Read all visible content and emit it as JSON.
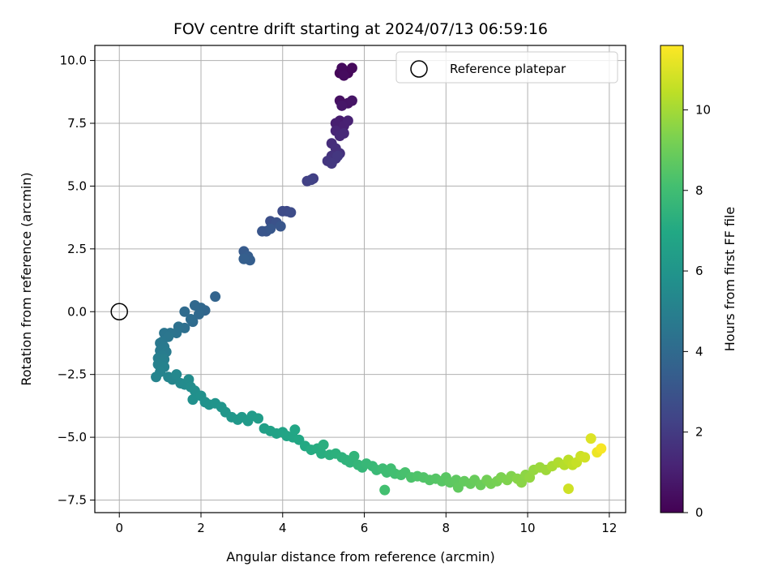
{
  "chart_data": {
    "type": "scatter",
    "title": "FOV centre drift starting at 2024/07/13 06:59:16",
    "xlabel": "Angular distance from reference (arcmin)",
    "ylabel": "Rotation from reference (arcmin)",
    "xlim": [
      -0.6,
      12.4
    ],
    "ylim": [
      -8.0,
      10.6
    ],
    "xticks": [
      0,
      2,
      4,
      6,
      8,
      10,
      12
    ],
    "xtick_labels": [
      "0",
      "2",
      "4",
      "6",
      "8",
      "10",
      "12"
    ],
    "yticks": [
      -7.5,
      -5.0,
      -2.5,
      0.0,
      2.5,
      5.0,
      7.5,
      10.0
    ],
    "ytick_labels": [
      "−7.5",
      "−5.0",
      "−2.5",
      "0.0",
      "2.5",
      "5.0",
      "7.5",
      "10.0"
    ],
    "grid": true,
    "legend": {
      "position": "top-right",
      "entries": [
        "Reference platepar"
      ]
    },
    "reference_point": {
      "x": 0,
      "y": 0,
      "label": "Reference platepar"
    },
    "colorbar": {
      "label": "Hours from first FF file",
      "colormap": "viridis",
      "range": [
        0,
        11.6
      ],
      "ticks": [
        0,
        2,
        4,
        6,
        8,
        10
      ],
      "tick_labels": [
        "0",
        "2",
        "4",
        "6",
        "8",
        "10"
      ]
    },
    "series": [
      {
        "points": [
          [
            5.5,
            9.6,
            0.1
          ],
          [
            5.4,
            9.5,
            0.15
          ],
          [
            5.6,
            9.5,
            0.2
          ],
          [
            5.7,
            9.7,
            0.25
          ],
          [
            5.45,
            9.7,
            0.3
          ],
          [
            5.5,
            9.4,
            0.35
          ],
          [
            5.4,
            8.4,
            0.5
          ],
          [
            5.6,
            8.3,
            0.6
          ],
          [
            5.7,
            8.4,
            0.65
          ],
          [
            5.45,
            8.2,
            0.7
          ],
          [
            5.4,
            7.6,
            0.9
          ],
          [
            5.3,
            7.5,
            1.0
          ],
          [
            5.5,
            7.4,
            1.05
          ],
          [
            5.6,
            7.6,
            1.1
          ],
          [
            5.3,
            7.2,
            1.2
          ],
          [
            5.4,
            7.0,
            1.3
          ],
          [
            5.5,
            7.1,
            1.35
          ],
          [
            5.2,
            6.7,
            1.5
          ],
          [
            5.3,
            6.5,
            1.55
          ],
          [
            5.4,
            6.3,
            1.6
          ],
          [
            5.2,
            6.2,
            1.7
          ],
          [
            5.3,
            6.1,
            1.75
          ],
          [
            5.1,
            6.0,
            1.8
          ],
          [
            5.35,
            6.2,
            1.85
          ],
          [
            5.2,
            5.9,
            1.9
          ],
          [
            4.75,
            5.3,
            2.1
          ],
          [
            4.6,
            5.2,
            2.2
          ],
          [
            4.7,
            5.25,
            2.25
          ],
          [
            4.1,
            4.0,
            2.5
          ],
          [
            4.0,
            4.0,
            2.6
          ],
          [
            4.2,
            3.95,
            2.65
          ],
          [
            3.7,
            3.6,
            2.8
          ],
          [
            3.85,
            3.55,
            2.9
          ],
          [
            3.6,
            3.2,
            3.0
          ],
          [
            3.5,
            3.2,
            3.05
          ],
          [
            3.95,
            3.4,
            3.1
          ],
          [
            3.7,
            3.3,
            3.15
          ],
          [
            3.05,
            2.4,
            3.3
          ],
          [
            3.15,
            2.2,
            3.4
          ],
          [
            3.2,
            2.05,
            3.45
          ],
          [
            3.05,
            2.1,
            3.5
          ],
          [
            2.35,
            0.6,
            3.7
          ],
          [
            2.1,
            0.05,
            3.8
          ],
          [
            2.0,
            0.15,
            3.85
          ],
          [
            1.85,
            0.25,
            3.9
          ],
          [
            1.95,
            -0.1,
            3.95
          ],
          [
            1.8,
            -0.4,
            4.0
          ],
          [
            1.6,
            0.0,
            4.05
          ],
          [
            1.75,
            -0.3,
            4.1
          ],
          [
            1.6,
            -0.65,
            4.2
          ],
          [
            1.45,
            -0.6,
            4.3
          ],
          [
            1.4,
            -0.85,
            4.4
          ],
          [
            1.25,
            -0.85,
            4.45
          ],
          [
            1.1,
            -0.85,
            4.5
          ],
          [
            1.2,
            -1.0,
            4.55
          ],
          [
            1.05,
            -1.2,
            4.6
          ],
          [
            1.0,
            -1.25,
            4.65
          ],
          [
            1.1,
            -1.4,
            4.7
          ],
          [
            1.0,
            -1.55,
            4.75
          ],
          [
            1.15,
            -1.6,
            4.8
          ],
          [
            1.05,
            -1.75,
            4.85
          ],
          [
            0.95,
            -1.85,
            4.9
          ],
          [
            1.1,
            -1.9,
            4.95
          ],
          [
            1.05,
            -2.05,
            5.0
          ],
          [
            0.95,
            -2.1,
            5.05
          ],
          [
            1.1,
            -2.2,
            5.1
          ],
          [
            1.0,
            -2.4,
            5.15
          ],
          [
            0.9,
            -2.6,
            5.2
          ],
          [
            1.2,
            -2.6,
            5.25
          ],
          [
            1.3,
            -2.7,
            5.3
          ],
          [
            1.4,
            -2.5,
            5.4
          ],
          [
            1.5,
            -2.85,
            5.45
          ],
          [
            1.6,
            -2.9,
            5.5
          ],
          [
            1.7,
            -2.7,
            5.55
          ],
          [
            1.75,
            -3.0,
            5.6
          ],
          [
            1.85,
            -3.15,
            5.7
          ],
          [
            1.8,
            -3.5,
            5.75
          ],
          [
            2.0,
            -3.35,
            5.8
          ],
          [
            2.1,
            -3.6,
            5.85
          ],
          [
            2.2,
            -3.7,
            5.9
          ],
          [
            2.35,
            -3.65,
            5.95
          ],
          [
            2.5,
            -3.8,
            6.0
          ],
          [
            2.6,
            -4.0,
            6.05
          ],
          [
            2.75,
            -4.2,
            6.1
          ],
          [
            2.9,
            -4.3,
            6.15
          ],
          [
            3.0,
            -4.2,
            6.2
          ],
          [
            3.15,
            -4.35,
            6.25
          ],
          [
            3.25,
            -4.15,
            6.3
          ],
          [
            3.4,
            -4.25,
            6.35
          ],
          [
            3.55,
            -4.65,
            6.5
          ],
          [
            3.7,
            -4.75,
            6.6
          ],
          [
            3.85,
            -4.85,
            6.65
          ],
          [
            4.0,
            -4.8,
            6.7
          ],
          [
            4.1,
            -4.95,
            6.75
          ],
          [
            4.25,
            -5.0,
            6.8
          ],
          [
            4.3,
            -4.7,
            6.85
          ],
          [
            4.4,
            -5.1,
            6.9
          ],
          [
            4.55,
            -5.35,
            7.0
          ],
          [
            4.7,
            -5.5,
            7.1
          ],
          [
            4.85,
            -5.45,
            7.15
          ],
          [
            4.95,
            -5.65,
            7.2
          ],
          [
            5.0,
            -5.3,
            7.25
          ],
          [
            5.15,
            -5.7,
            7.3
          ],
          [
            5.3,
            -5.65,
            7.35
          ],
          [
            5.45,
            -5.8,
            7.4
          ],
          [
            5.55,
            -5.9,
            7.45
          ],
          [
            5.65,
            -6.0,
            7.5
          ],
          [
            5.75,
            -5.75,
            7.55
          ],
          [
            5.85,
            -6.1,
            7.6
          ],
          [
            5.95,
            -6.2,
            7.65
          ],
          [
            6.05,
            -6.05,
            7.7
          ],
          [
            6.2,
            -6.15,
            7.75
          ],
          [
            6.3,
            -6.3,
            7.8
          ],
          [
            6.45,
            -6.25,
            7.9
          ],
          [
            6.55,
            -6.4,
            7.95
          ],
          [
            6.65,
            -6.25,
            8.0
          ],
          [
            6.75,
            -6.45,
            8.05
          ],
          [
            6.5,
            -7.1,
            8.1
          ],
          [
            6.9,
            -6.5,
            8.15
          ],
          [
            7.0,
            -6.4,
            8.2
          ],
          [
            7.15,
            -6.6,
            8.3
          ],
          [
            7.3,
            -6.55,
            8.35
          ],
          [
            7.45,
            -6.6,
            8.4
          ],
          [
            7.6,
            -6.7,
            8.45
          ],
          [
            7.75,
            -6.65,
            8.5
          ],
          [
            7.9,
            -6.75,
            8.55
          ],
          [
            8.0,
            -6.6,
            8.6
          ],
          [
            8.1,
            -6.8,
            8.65
          ],
          [
            8.25,
            -6.7,
            8.7
          ],
          [
            8.3,
            -7.0,
            8.75
          ],
          [
            8.45,
            -6.75,
            8.8
          ],
          [
            8.6,
            -6.85,
            8.85
          ],
          [
            8.7,
            -6.7,
            8.9
          ],
          [
            8.85,
            -6.9,
            8.95
          ],
          [
            9.0,
            -6.7,
            9.1
          ],
          [
            9.1,
            -6.85,
            9.15
          ],
          [
            9.25,
            -6.75,
            9.2
          ],
          [
            9.35,
            -6.6,
            9.3
          ],
          [
            9.5,
            -6.7,
            9.35
          ],
          [
            9.6,
            -6.55,
            9.4
          ],
          [
            9.75,
            -6.65,
            9.5
          ],
          [
            9.85,
            -6.8,
            9.55
          ],
          [
            9.95,
            -6.5,
            9.6
          ],
          [
            10.05,
            -6.6,
            9.7
          ],
          [
            10.15,
            -6.3,
            9.75
          ],
          [
            10.3,
            -6.2,
            9.85
          ],
          [
            10.45,
            -6.3,
            9.9
          ],
          [
            10.6,
            -6.15,
            10.1
          ],
          [
            10.75,
            -6.0,
            10.2
          ],
          [
            10.9,
            -6.1,
            10.3
          ],
          [
            11.0,
            -5.9,
            10.4
          ],
          [
            11.1,
            -6.1,
            10.5
          ],
          [
            11.2,
            -6.0,
            10.6
          ],
          [
            11.3,
            -5.75,
            10.7
          ],
          [
            11.0,
            -7.05,
            10.75
          ],
          [
            11.4,
            -5.8,
            10.8
          ],
          [
            11.55,
            -5.05,
            11.0
          ],
          [
            11.7,
            -5.6,
            11.3
          ],
          [
            11.8,
            -5.45,
            11.5
          ]
        ]
      }
    ]
  }
}
